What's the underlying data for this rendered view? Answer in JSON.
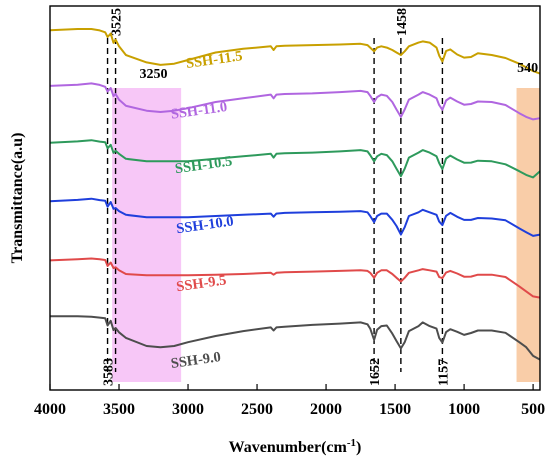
{
  "chart_data": {
    "type": "line",
    "title": "",
    "xlabel": "Wavenumber(cm",
    "xlabel_unit_sup": "-1",
    "xlabel_close": ")",
    "ylabel": "Transmittance(a.u)",
    "xlim": [
      4000,
      450
    ],
    "xticks": [
      4000,
      3500,
      3000,
      2500,
      2000,
      1500,
      1000,
      500
    ],
    "grid": false,
    "legend": "none",
    "shaded_regions": [
      {
        "x": [
          3550,
          3050
        ],
        "color": "#ee82ee"
      },
      {
        "x": [
          620,
          450
        ],
        "color": "#f4a460"
      }
    ],
    "markers": [
      {
        "x": 3583,
        "label": "3583",
        "label_pos": "bottom"
      },
      {
        "x": 3525,
        "label": "3525",
        "label_pos": "top"
      },
      {
        "x": 1652,
        "label": "1652",
        "label_pos": "bottom"
      },
      {
        "x": 1458,
        "label": "1458",
        "label_pos": "top"
      },
      {
        "x": 1157,
        "label": "1157",
        "label_pos": "bottom"
      }
    ],
    "annotations": [
      {
        "x": 3250,
        "text": "3250"
      },
      {
        "x": 540,
        "text": "540"
      }
    ],
    "series": [
      {
        "name": "SSH-9.0",
        "color": "#4d4d4d",
        "offset": 0,
        "x": [
          4000,
          3800,
          3700,
          3640,
          3600,
          3583,
          3560,
          3540,
          3525,
          3500,
          3450,
          3300,
          3200,
          3100,
          3000,
          2800,
          2600,
          2400,
          2380,
          2360,
          2300,
          2100,
          1900,
          1750,
          1700,
          1680,
          1652,
          1630,
          1600,
          1560,
          1520,
          1490,
          1458,
          1430,
          1400,
          1330,
          1300,
          1250,
          1200,
          1180,
          1157,
          1130,
          1100,
          1050,
          1000,
          950,
          900,
          800,
          700,
          600,
          550,
          500,
          450
        ],
        "y": [
          90,
          90,
          89,
          88,
          84,
          72,
          82,
          70,
          74,
          64,
          55,
          42,
          40,
          42,
          48,
          58,
          66,
          72,
          67,
          72,
          73,
          76,
          78,
          80,
          77,
          70,
          52,
          68,
          74,
          75,
          62,
          50,
          38,
          48,
          66,
          74,
          80,
          74,
          70,
          58,
          48,
          62,
          66,
          64,
          62,
          66,
          68,
          65,
          60,
          48,
          40,
          26,
          20
        ]
      },
      {
        "name": "SSH-9.5",
        "color": "#e04a4a",
        "offset": 62,
        "x": [
          4000,
          3800,
          3700,
          3640,
          3600,
          3583,
          3560,
          3540,
          3525,
          3500,
          3450,
          3300,
          3200,
          3100,
          3000,
          2800,
          2600,
          2400,
          2380,
          2360,
          2300,
          2100,
          1900,
          1750,
          1700,
          1680,
          1652,
          1630,
          1600,
          1560,
          1520,
          1490,
          1458,
          1430,
          1400,
          1330,
          1300,
          1250,
          1200,
          1180,
          1157,
          1130,
          1100,
          1050,
          1000,
          950,
          900,
          800,
          700,
          600,
          550,
          500,
          450
        ],
        "y": [
          80,
          82,
          83,
          82,
          78,
          68,
          76,
          70,
          72,
          64,
          58,
          56,
          56,
          56,
          56,
          57,
          58,
          60,
          57,
          60,
          61,
          62,
          63,
          64,
          63,
          60,
          52,
          60,
          64,
          64,
          58,
          52,
          46,
          52,
          60,
          64,
          66,
          64,
          62,
          56,
          52,
          58,
          60,
          58,
          56,
          57,
          58,
          55,
          50,
          38,
          30,
          22,
          20
        ]
      },
      {
        "name": "SSH-10.0",
        "color": "#1f3fdc",
        "offset": 120,
        "x": [
          4000,
          3800,
          3700,
          3640,
          3600,
          3583,
          3560,
          3540,
          3525,
          3500,
          3450,
          3300,
          3200,
          3100,
          3000,
          2800,
          2600,
          2400,
          2380,
          2360,
          2300,
          2100,
          1900,
          1750,
          1700,
          1680,
          1652,
          1630,
          1600,
          1560,
          1520,
          1490,
          1458,
          1430,
          1400,
          1330,
          1300,
          1250,
          1200,
          1180,
          1157,
          1130,
          1100,
          1050,
          1000,
          950,
          900,
          800,
          700,
          600,
          550,
          500,
          450
        ],
        "y": [
          82,
          84,
          86,
          84,
          80,
          70,
          80,
          72,
          74,
          66,
          60,
          56,
          56,
          56,
          56,
          58,
          60,
          62,
          57,
          62,
          63,
          64,
          65,
          66,
          64,
          58,
          48,
          58,
          62,
          62,
          52,
          42,
          28,
          40,
          58,
          64,
          68,
          64,
          60,
          52,
          44,
          56,
          60,
          56,
          54,
          55,
          56,
          52,
          48,
          38,
          32,
          26,
          28
        ]
      },
      {
        "name": "SSH-10.5",
        "color": "#2e9a5c",
        "offset": 176,
        "x": [
          4000,
          3800,
          3700,
          3640,
          3600,
          3583,
          3560,
          3540,
          3525,
          3500,
          3450,
          3300,
          3200,
          3100,
          3000,
          2800,
          2600,
          2400,
          2380,
          2360,
          2300,
          2100,
          1900,
          1750,
          1700,
          1680,
          1652,
          1630,
          1600,
          1560,
          1520,
          1490,
          1458,
          1430,
          1400,
          1330,
          1300,
          1250,
          1200,
          1180,
          1157,
          1130,
          1100,
          1050,
          1000,
          950,
          900,
          800,
          700,
          600,
          550,
          500,
          450
        ],
        "y": [
          86,
          88,
          90,
          88,
          84,
          74,
          82,
          72,
          76,
          68,
          60,
          56,
          56,
          56,
          56,
          60,
          64,
          68,
          62,
          68,
          69,
          70,
          72,
          74,
          72,
          66,
          56,
          64,
          68,
          66,
          56,
          44,
          32,
          44,
          62,
          70,
          74,
          70,
          64,
          56,
          44,
          58,
          62,
          58,
          56,
          57,
          58,
          54,
          48,
          40,
          34,
          30,
          40
        ]
      },
      {
        "name": "SSH-11.0",
        "color": "#b066e0",
        "offset": 234,
        "x": [
          4000,
          3800,
          3700,
          3640,
          3600,
          3583,
          3560,
          3540,
          3525,
          3500,
          3450,
          3300,
          3200,
          3100,
          3000,
          2800,
          2600,
          2400,
          2380,
          2360,
          2300,
          2100,
          1900,
          1750,
          1700,
          1680,
          1652,
          1630,
          1600,
          1560,
          1520,
          1490,
          1458,
          1430,
          1400,
          1330,
          1300,
          1250,
          1200,
          1180,
          1157,
          1130,
          1100,
          1050,
          1000,
          950,
          900,
          800,
          700,
          600,
          550,
          500,
          450
        ],
        "y": [
          84,
          86,
          88,
          86,
          80,
          72,
          80,
          70,
          74,
          62,
          52,
          44,
          42,
          44,
          48,
          58,
          64,
          70,
          64,
          70,
          71,
          72,
          74,
          76,
          74,
          68,
          58,
          66,
          70,
          68,
          58,
          46,
          34,
          46,
          62,
          70,
          74,
          70,
          64,
          56,
          46,
          58,
          62,
          58,
          56,
          58,
          60,
          56,
          50,
          40,
          34,
          30,
          32
        ]
      },
      {
        "name": "SSH-11.5",
        "color": "#c8a000",
        "offset": 286,
        "x": [
          4000,
          3800,
          3700,
          3640,
          3600,
          3583,
          3560,
          3540,
          3525,
          3500,
          3450,
          3300,
          3200,
          3100,
          3000,
          2800,
          2600,
          2400,
          2380,
          2360,
          2300,
          2100,
          1900,
          1750,
          1700,
          1680,
          1652,
          1630,
          1600,
          1560,
          1520,
          1490,
          1458,
          1430,
          1400,
          1330,
          1300,
          1250,
          1200,
          1180,
          1157,
          1130,
          1100,
          1050,
          1000,
          950,
          900,
          800,
          700,
          600,
          550,
          500,
          450
        ],
        "y": [
          90,
          92,
          92,
          90,
          84,
          76,
          84,
          72,
          78,
          64,
          50,
          38,
          34,
          36,
          42,
          54,
          60,
          64,
          58,
          64,
          65,
          66,
          67,
          68,
          66,
          62,
          56,
          62,
          64,
          62,
          58,
          54,
          50,
          56,
          64,
          70,
          72,
          70,
          62,
          52,
          40,
          54,
          56,
          50,
          48,
          50,
          54,
          48,
          42,
          36,
          30,
          24,
          20
        ]
      }
    ],
    "series_label_positions": [
      {
        "name": "SSH-9.0",
        "x": 3120,
        "y_off": 22
      },
      {
        "name": "SSH-9.5",
        "x": 3080,
        "y_off": 16
      },
      {
        "name": "SSH-10.0",
        "x": 3080,
        "y_off": 16
      },
      {
        "name": "SSH-10.5",
        "x": 3090,
        "y_off": 12
      },
      {
        "name": "SSH-11.0",
        "x": 3120,
        "y_off": 8
      },
      {
        "name": "SSH-11.5",
        "x": 3010,
        "y_off": 8
      }
    ]
  }
}
